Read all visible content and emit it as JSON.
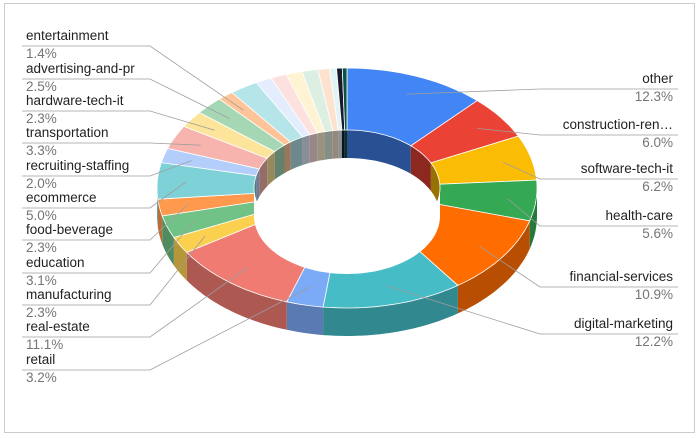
{
  "chart_data": {
    "type": "pie",
    "style": "3d-donut",
    "title": "",
    "legend_placement": "labels",
    "slices": [
      {
        "label": "other",
        "value": 12.3,
        "pct": "12.3%",
        "color": "#4285f4",
        "side": "right"
      },
      {
        "label": "construction-ren…",
        "value": 6.0,
        "pct": "6.0%",
        "color": "#ea4335",
        "side": "right"
      },
      {
        "label": "software-tech-it",
        "value": 6.2,
        "pct": "6.2%",
        "color": "#fbbc04",
        "side": "right"
      },
      {
        "label": "health-care",
        "value": 5.6,
        "pct": "5.6%",
        "color": "#34a853",
        "side": "right"
      },
      {
        "label": "financial-services",
        "value": 10.9,
        "pct": "10.9%",
        "color": "#ff6d01",
        "side": "right"
      },
      {
        "label": "digital-marketing",
        "value": 12.2,
        "pct": "12.2%",
        "color": "#46bdc6",
        "side": "right"
      },
      {
        "label": "retail",
        "value": 3.2,
        "pct": "3.2%",
        "color": "#7baaf7",
        "side": "left"
      },
      {
        "label": "real-estate",
        "value": 11.1,
        "pct": "11.1%",
        "color": "#f07b72",
        "side": "left"
      },
      {
        "label": "manufacturing",
        "value": 2.3,
        "pct": "2.3%",
        "color": "#fcd04f",
        "side": "left"
      },
      {
        "label": "education",
        "value": 3.1,
        "pct": "3.1%",
        "color": "#71c287",
        "side": "left"
      },
      {
        "label": "food-beverage",
        "value": 2.3,
        "pct": "2.3%",
        "color": "#ff994d",
        "side": "left"
      },
      {
        "label": "ecommerce",
        "value": 5.0,
        "pct": "5.0%",
        "color": "#7ed1d7",
        "side": "left"
      },
      {
        "label": "recruiting-staffing",
        "value": 2.0,
        "pct": "2.0%",
        "color": "#b3cefb",
        "side": "left"
      },
      {
        "label": "transportation",
        "value": 3.3,
        "pct": "3.3%",
        "color": "#f7b4ae",
        "side": "left"
      },
      {
        "label": "hardware-tech-it",
        "value": 2.3,
        "pct": "2.3%",
        "color": "#fde49b",
        "side": "left"
      },
      {
        "label": "advertising-and-pr",
        "value": 2.5,
        "pct": "2.5%",
        "color": "#a5d7b4",
        "side": "left"
      },
      {
        "label": "entertainment",
        "value": 1.4,
        "pct": "1.4%",
        "color": "#ffc599",
        "side": "left"
      },
      {
        "label": "",
        "value": 2.5,
        "pct": "",
        "color": "#b5e5e8",
        "side": "none"
      },
      {
        "label": "",
        "value": 1.4,
        "pct": "",
        "color": "#e3edfd",
        "side": "none"
      },
      {
        "label": "",
        "value": 1.4,
        "pct": "",
        "color": "#fde1df",
        "side": "none"
      },
      {
        "label": "",
        "value": 1.4,
        "pct": "",
        "color": "#fef3d3",
        "side": "none"
      },
      {
        "label": "",
        "value": 1.4,
        "pct": "",
        "color": "#dcefe2",
        "side": "none"
      },
      {
        "label": "",
        "value": 1.0,
        "pct": "",
        "color": "#fde3cf",
        "side": "none"
      },
      {
        "label": "",
        "value": 0.6,
        "pct": "",
        "color": "#e0f4f5",
        "side": "none"
      },
      {
        "label": "",
        "value": 0.5,
        "pct": "",
        "color": "#1a1a2e",
        "side": "none"
      },
      {
        "label": "",
        "value": 0.4,
        "pct": "",
        "color": "#0b5345",
        "side": "none"
      }
    ]
  }
}
